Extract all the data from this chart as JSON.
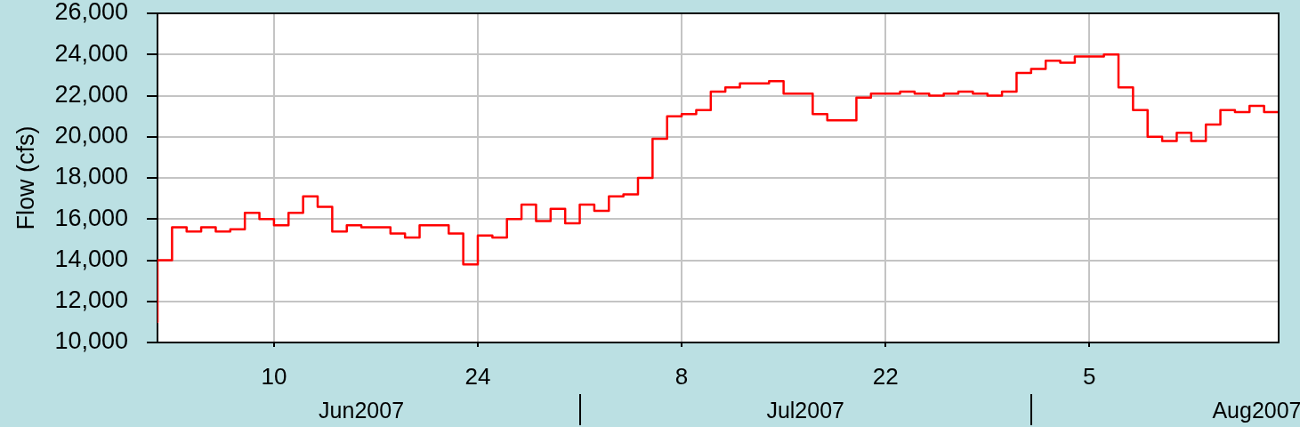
{
  "chart_data": {
    "type": "step",
    "ylabel": "Flow (cfs)",
    "x": [
      "2007-06-02",
      "2007-06-03",
      "2007-06-04",
      "2007-06-05",
      "2007-06-06",
      "2007-06-07",
      "2007-06-08",
      "2007-06-09",
      "2007-06-10",
      "2007-06-11",
      "2007-06-12",
      "2007-06-13",
      "2007-06-14",
      "2007-06-15",
      "2007-06-16",
      "2007-06-17",
      "2007-06-18",
      "2007-06-19",
      "2007-06-20",
      "2007-06-21",
      "2007-06-22",
      "2007-06-23",
      "2007-06-24",
      "2007-06-25",
      "2007-06-26",
      "2007-06-27",
      "2007-06-28",
      "2007-06-29",
      "2007-06-30",
      "2007-07-01",
      "2007-07-02",
      "2007-07-03",
      "2007-07-04",
      "2007-07-05",
      "2007-07-06",
      "2007-07-07",
      "2007-07-08",
      "2007-07-09",
      "2007-07-10",
      "2007-07-11",
      "2007-07-12",
      "2007-07-13",
      "2007-07-14",
      "2007-07-15",
      "2007-07-16",
      "2007-07-17",
      "2007-07-18",
      "2007-07-19",
      "2007-07-20",
      "2007-07-21",
      "2007-07-22",
      "2007-07-23",
      "2007-07-24",
      "2007-07-25",
      "2007-07-26",
      "2007-07-27",
      "2007-07-28",
      "2007-07-29",
      "2007-07-30",
      "2007-07-31",
      "2007-08-01",
      "2007-08-02",
      "2007-08-03",
      "2007-08-04",
      "2007-08-05",
      "2007-08-06",
      "2007-08-07",
      "2007-08-08",
      "2007-08-09",
      "2007-08-10",
      "2007-08-11",
      "2007-08-12",
      "2007-08-13",
      "2007-08-14",
      "2007-08-15",
      "2007-08-16",
      "2007-08-17",
      "2007-08-18"
    ],
    "values": [
      11000,
      14000,
      15600,
      15400,
      15600,
      15400,
      15500,
      16300,
      16000,
      15700,
      16300,
      17100,
      16600,
      15400,
      15700,
      15600,
      15600,
      15300,
      15100,
      15700,
      15700,
      15300,
      13800,
      15200,
      15100,
      16000,
      16700,
      15900,
      16500,
      15800,
      16700,
      16400,
      17100,
      17200,
      18000,
      19900,
      21000,
      21100,
      21300,
      22200,
      22400,
      22600,
      22600,
      22700,
      22100,
      22100,
      21100,
      20800,
      20800,
      21900,
      22100,
      22100,
      22200,
      22100,
      22000,
      22100,
      22200,
      22100,
      22000,
      22200,
      23100,
      23300,
      23700,
      23600,
      23900,
      23900,
      24000,
      22400,
      21300,
      20000,
      19800,
      20200,
      19800,
      20600,
      21300,
      21200,
      21500,
      21200
    ],
    "color": "#ff0000",
    "xlim": [
      "2007-06-02",
      "2007-08-18"
    ],
    "xticks": [
      {
        "value": "2007-06-10",
        "label": "10"
      },
      {
        "value": "2007-06-24",
        "label": "24"
      },
      {
        "value": "2007-07-08",
        "label": "8"
      },
      {
        "value": "2007-07-22",
        "label": "22"
      },
      {
        "value": "2007-08-05",
        "label": "5"
      }
    ],
    "x2lim": [
      "2007-06-02",
      "2007-08-18"
    ],
    "x2ticks": [
      {
        "value": "2007-06-16",
        "label": "Jun2007"
      },
      {
        "value": "2007-07-16T12:00",
        "label": "Jul2007"
      },
      {
        "value": "2007-08-16T12:00",
        "label": "Aug2007"
      }
    ],
    "ylim": [
      10000,
      26000
    ],
    "yticks": [
      {
        "value": 10000,
        "label": "10,000"
      },
      {
        "value": 12000,
        "label": "12,000"
      },
      {
        "value": 14000,
        "label": "14,000"
      },
      {
        "value": 16000,
        "label": "16,000"
      },
      {
        "value": 18000,
        "label": "18,000"
      },
      {
        "value": 20000,
        "label": "20,000"
      },
      {
        "value": 22000,
        "label": "22,000"
      },
      {
        "value": 24000,
        "label": "24,000"
      },
      {
        "value": 26000,
        "label": "26,000"
      }
    ],
    "grid": true
  }
}
